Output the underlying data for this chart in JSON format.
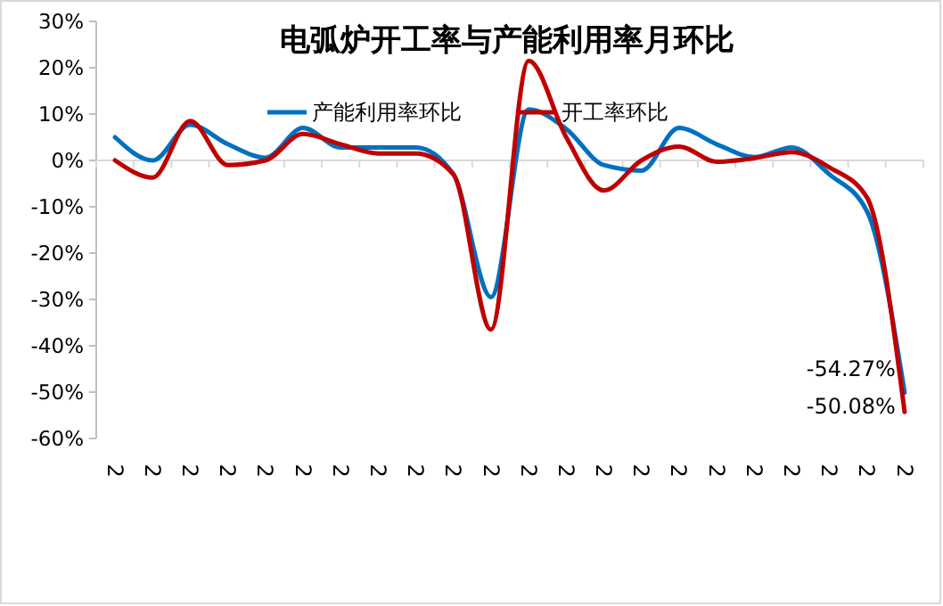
{
  "chart_data": {
    "type": "line",
    "title": "电弧炉开工率与产能利用率月环比",
    "categories": [
      "2",
      "2",
      "2",
      "2",
      "2",
      "2",
      "2",
      "2",
      "2",
      "2",
      "2",
      "2",
      "2",
      "2",
      "2",
      "2",
      "2",
      "2",
      "2",
      "2",
      "2",
      "2"
    ],
    "series": [
      {
        "name": "产能利用率环比",
        "color": "#0070c0",
        "values": [
          5,
          0,
          7.7,
          3.5,
          0.6,
          7,
          2.8,
          2.8,
          2.8,
          -3,
          -29.5,
          11,
          6.8,
          -1,
          -2.2,
          7,
          3.5,
          0.7,
          2.8,
          -3,
          -11,
          -50.08
        ],
        "value_labels": [
          null,
          null,
          null,
          null,
          null,
          null,
          null,
          null,
          null,
          null,
          null,
          null,
          null,
          null,
          null,
          null,
          null,
          null,
          null,
          null,
          null,
          "-50.08%"
        ]
      },
      {
        "name": "开工率环比",
        "color": "#c00000",
        "values": [
          0,
          -3.7,
          8.5,
          -1,
          0,
          5.7,
          3.5,
          1.5,
          1.5,
          -3,
          -36.5,
          21.5,
          5,
          -6.5,
          0,
          3,
          -0.3,
          0.5,
          1.8,
          -1.5,
          -8,
          -54.27
        ],
        "value_labels": [
          null,
          null,
          null,
          null,
          null,
          null,
          null,
          null,
          null,
          null,
          null,
          null,
          null,
          null,
          null,
          null,
          null,
          null,
          null,
          null,
          null,
          "-54.27%"
        ]
      }
    ],
    "ylim": [
      -60,
      30
    ],
    "yticks": [
      {
        "value": -60,
        "label": "-60%"
      },
      {
        "value": -50,
        "label": "-50%"
      },
      {
        "value": -40,
        "label": "-40%"
      },
      {
        "value": -30,
        "label": "-30%"
      },
      {
        "value": -20,
        "label": "-20%"
      },
      {
        "value": -10,
        "label": "-10%"
      },
      {
        "value": 0,
        "label": "0%"
      },
      {
        "value": 10,
        "label": "10%"
      },
      {
        "value": 20,
        "label": "20%"
      },
      {
        "value": 30,
        "label": "30%"
      }
    ],
    "legend": "top",
    "marker": "none",
    "line_style": "solid"
  }
}
